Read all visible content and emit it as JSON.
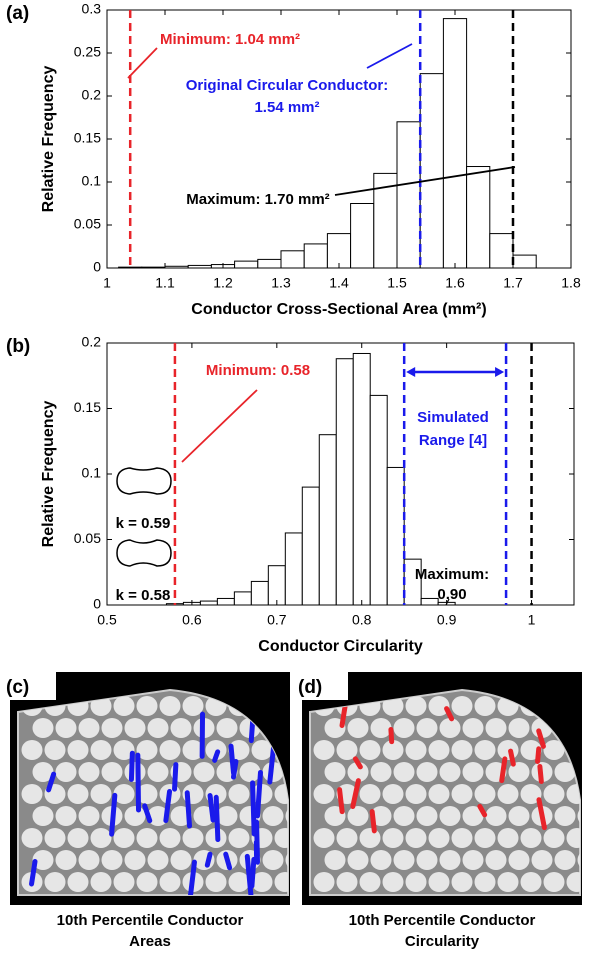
{
  "chart_data": [
    {
      "type": "histogram",
      "panel": "(a)",
      "xlabel": "Conductor Cross-Sectional Area (mm²)",
      "ylabel": "Relative Frequency",
      "bins": [
        1.02,
        1.06,
        1.1,
        1.14,
        1.18,
        1.22,
        1.26,
        1.3,
        1.34,
        1.38,
        1.42,
        1.46,
        1.5,
        1.54,
        1.58,
        1.62,
        1.66,
        1.7,
        1.74
      ],
      "values": [
        0.001,
        0.001,
        0.002,
        0.003,
        0.004,
        0.008,
        0.01,
        0.02,
        0.028,
        0.04,
        0.075,
        0.11,
        0.17,
        0.226,
        0.29,
        0.118,
        0.04,
        0.015,
        0.002
      ],
      "color": "#ffffff",
      "edgecolor": "#000000",
      "xlim": [
        1,
        1.8
      ],
      "ylim": [
        0,
        0.3
      ],
      "xticks": [
        1,
        1.1,
        1.2,
        1.3,
        1.4,
        1.5,
        1.6,
        1.7,
        1.8
      ],
      "yticks": [
        0,
        0.05,
        0.1,
        0.15,
        0.2,
        0.25,
        0.3
      ],
      "vlines": [
        {
          "value": 1.04,
          "color": "#e8242a",
          "label": [
            "Minimum: 1.04 mm²"
          ]
        },
        {
          "value": 1.54,
          "color": "#1a1aeb",
          "label": [
            "Original Circular Conductor:",
            "1.54 mm²"
          ]
        },
        {
          "value": 1.7,
          "color": "#000000",
          "label": [
            "Maximum: 1.70 mm²"
          ]
        }
      ]
    },
    {
      "type": "histogram",
      "panel": "(b)",
      "xlabel": "Conductor Circularity",
      "ylabel": "Relative Frequency",
      "bins": [
        0.57,
        0.59,
        0.61,
        0.63,
        0.65,
        0.67,
        0.69,
        0.71,
        0.73,
        0.75,
        0.77,
        0.79,
        0.81,
        0.83,
        0.85,
        0.87,
        0.89,
        0.91
      ],
      "values": [
        0.001,
        0.002,
        0.003,
        0.005,
        0.01,
        0.018,
        0.03,
        0.055,
        0.09,
        0.13,
        0.188,
        0.192,
        0.16,
        0.105,
        0.035,
        0.005,
        0.002
      ],
      "color": "#ffffff",
      "edgecolor": "#000000",
      "xlim": [
        0.5,
        1.05
      ],
      "ylim": [
        0,
        0.2
      ],
      "xticks": [
        0.5,
        0.6,
        0.7,
        0.8,
        0.9,
        1
      ],
      "yticks": [
        0,
        0.05,
        0.1,
        0.15,
        0.2
      ],
      "vlines": [
        {
          "value": 0.58,
          "color": "#e8242a",
          "label": [
            "Minimum: 0.58"
          ]
        },
        {
          "value": 0.85,
          "color": "#1a1aeb",
          "label": [
            "Simulated",
            "Range [4]"
          ]
        },
        {
          "value": 0.97,
          "color": "#1a1aeb"
        },
        {
          "value": 1,
          "color": "#000000"
        }
      ],
      "annotations": [
        {
          "text": [
            "Maximum:",
            "0.90"
          ]
        }
      ],
      "shape_labels": [
        "k = 0.59",
        "k = 0.58"
      ]
    }
  ],
  "images": [
    {
      "label": "(c)",
      "caption": [
        "10th Percentile Conductor",
        "Areas"
      ],
      "marker_color": "#1a1aeb"
    },
    {
      "label": "(d)",
      "caption": [
        "10th Percentile Conductor",
        "Circularity"
      ],
      "marker_color": "#e8242a"
    }
  ]
}
